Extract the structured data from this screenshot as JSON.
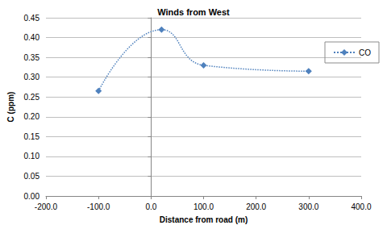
{
  "chart_data": {
    "type": "line",
    "title": "Winds from West",
    "x_label": "Distance from road (m)",
    "y_label": "C (ppm)",
    "x": [
      -100,
      20,
      100,
      300
    ],
    "series": [
      {
        "name": "CO",
        "color": "#4f81bd",
        "values": [
          0.265,
          0.42,
          0.33,
          0.315
        ],
        "marker": "diamond",
        "line_style": "dotted"
      }
    ],
    "xlim": [
      -200,
      400
    ],
    "xticks": [
      {
        "value": -200,
        "label": "-200.0"
      },
      {
        "value": -100,
        "label": "-100.0"
      },
      {
        "value": 0,
        "label": "0.0"
      },
      {
        "value": 100,
        "label": "100.0"
      },
      {
        "value": 200,
        "label": "200.0"
      },
      {
        "value": 300,
        "label": "300.0"
      },
      {
        "value": 400,
        "label": "400.0"
      }
    ],
    "ylim": [
      0,
      0.45
    ],
    "yticks": [
      {
        "value": 0,
        "label": "0.00"
      },
      {
        "value": 0.05,
        "label": "0.05"
      },
      {
        "value": 0.1,
        "label": "0.10"
      },
      {
        "value": 0.15,
        "label": "0.15"
      },
      {
        "value": 0.2,
        "label": "0.20"
      },
      {
        "value": 0.25,
        "label": "0.25"
      },
      {
        "value": 0.3,
        "label": "0.30"
      },
      {
        "value": 0.35,
        "label": "0.35"
      },
      {
        "value": 0.4,
        "label": "0.40"
      },
      {
        "value": 0.45,
        "label": "0.45"
      }
    ],
    "grid": true,
    "legend": "upper right"
  }
}
